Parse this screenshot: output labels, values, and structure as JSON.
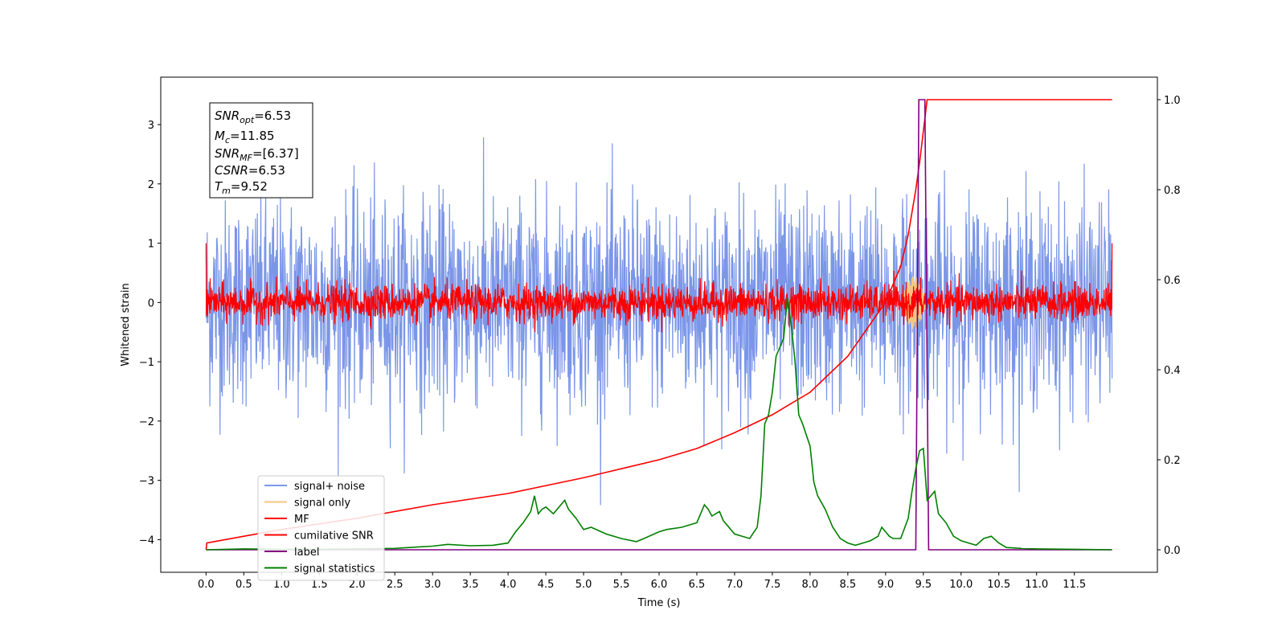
{
  "chart_data": {
    "type": "line",
    "xlabel": "Time (s)",
    "ylabel": "Whitened strain",
    "xlim": [
      -0.6,
      12.6
    ],
    "ylim": [
      -4.55,
      3.8
    ],
    "ylim_right": [
      -0.05,
      1.05
    ],
    "x_ticks": [
      "0.0",
      "0.5",
      "1.0",
      "1.5",
      "2.0",
      "2.5",
      "3.0",
      "3.5",
      "4.0",
      "4.5",
      "5.0",
      "5.5",
      "6.0",
      "6.5",
      "7.0",
      "7.5",
      "8.0",
      "8.5",
      "9.0",
      "9.5",
      "10.0",
      "10.5",
      "11.0",
      "11.5"
    ],
    "y_ticks": [
      "3",
      "2",
      "1",
      "0",
      "−1",
      "−2",
      "−3",
      "−4"
    ],
    "y2_ticks": [
      "1.0",
      "0.8",
      "0.6",
      "0.4",
      "0.2",
      "0.0"
    ],
    "grid": false,
    "legend_position": "lower-left",
    "info_box": {
      "snr_opt": {
        "main": "SNR",
        "sub": "opt",
        "value": "=6.53"
      },
      "mc": {
        "main": "M",
        "sub": "c",
        "value": "=11.85"
      },
      "snr_mf": {
        "main": "SNR",
        "sub": "MF",
        "value": "=[6.37]"
      },
      "csnr": {
        "main": "CSNR",
        "value": "=6.53"
      },
      "tm": {
        "main": "T",
        "sub": "m",
        "value": "=9.52"
      }
    },
    "series": [
      {
        "name": "signal+ noise",
        "color": "#7b96e8",
        "axis": "left",
        "description_values": {
          "x_range": [
            0,
            12
          ],
          "mean": 0.0,
          "std": 0.85
        }
      },
      {
        "name": "signal only",
        "color": "#f5c77e",
        "axis": "left",
        "x": [
          9.2,
          9.3,
          9.4,
          9.45,
          9.5,
          9.52,
          9.55
        ],
        "y": [
          0.0,
          0.1,
          0.25,
          0.35,
          0.45,
          0.3,
          0.0
        ]
      },
      {
        "name": "MF",
        "color": "#ff0000",
        "axis": "left",
        "description_values": {
          "x_range": [
            0,
            12
          ],
          "mean": 0.0,
          "std": 0.15,
          "edge_values": [
            1.0,
            1.0
          ]
        }
      },
      {
        "name": "cumilative SNR",
        "color": "#ff0000",
        "axis": "right",
        "x": [
          0.0,
          0.01,
          0.5,
          1.0,
          2.0,
          3.0,
          4.0,
          5.0,
          5.5,
          6.0,
          6.5,
          7.0,
          7.5,
          8.0,
          8.5,
          9.0,
          9.2,
          9.3,
          9.4,
          9.45,
          9.5,
          9.55,
          9.6,
          10.0,
          11.0,
          12.0
        ],
        "y": [
          0.0,
          0.015,
          0.03,
          0.045,
          0.07,
          0.1,
          0.125,
          0.16,
          0.18,
          0.2,
          0.225,
          0.26,
          0.3,
          0.35,
          0.43,
          0.55,
          0.63,
          0.7,
          0.8,
          0.86,
          0.93,
          1.0,
          1.0,
          1.0,
          1.0,
          1.0
        ]
      },
      {
        "name": "label",
        "color": "#800080",
        "axis": "right",
        "x": [
          0.0,
          9.4,
          9.44,
          9.52,
          9.57,
          12.0
        ],
        "y": [
          0.0,
          0.0,
          1.0,
          1.0,
          0.0,
          0.0
        ]
      },
      {
        "name": "signal statistics",
        "color": "#008000",
        "axis": "right",
        "x": [
          0.0,
          0.5,
          1.0,
          1.5,
          2.0,
          2.5,
          2.8,
          3.0,
          3.2,
          3.5,
          3.8,
          4.0,
          4.1,
          4.2,
          4.3,
          4.35,
          4.4,
          4.45,
          4.5,
          4.6,
          4.7,
          4.75,
          4.8,
          4.9,
          5.0,
          5.1,
          5.3,
          5.5,
          5.7,
          5.8,
          6.0,
          6.1,
          6.3,
          6.5,
          6.6,
          6.65,
          6.7,
          6.8,
          6.85,
          6.9,
          7.0,
          7.2,
          7.3,
          7.35,
          7.4,
          7.45,
          7.5,
          7.55,
          7.6,
          7.65,
          7.7,
          7.75,
          7.8,
          7.85,
          7.9,
          8.0,
          8.05,
          8.1,
          8.2,
          8.3,
          8.4,
          8.5,
          8.6,
          8.7,
          8.8,
          8.9,
          8.95,
          9.0,
          9.05,
          9.1,
          9.2,
          9.3,
          9.35,
          9.4,
          9.45,
          9.5,
          9.52,
          9.55,
          9.6,
          9.65,
          9.7,
          9.8,
          9.9,
          10.0,
          10.1,
          10.2,
          10.3,
          10.4,
          10.5,
          10.6,
          10.8,
          11.0,
          11.5,
          12.0
        ],
        "y": [
          0.0,
          0.002,
          0.001,
          0.001,
          0.002,
          0.003,
          0.006,
          0.008,
          0.012,
          0.009,
          0.01,
          0.015,
          0.04,
          0.06,
          0.085,
          0.12,
          0.08,
          0.09,
          0.095,
          0.08,
          0.1,
          0.11,
          0.09,
          0.07,
          0.045,
          0.05,
          0.035,
          0.025,
          0.018,
          0.025,
          0.04,
          0.045,
          0.05,
          0.06,
          0.1,
          0.09,
          0.075,
          0.085,
          0.065,
          0.055,
          0.035,
          0.025,
          0.05,
          0.12,
          0.28,
          0.3,
          0.35,
          0.43,
          0.45,
          0.47,
          0.56,
          0.5,
          0.42,
          0.3,
          0.28,
          0.23,
          0.15,
          0.12,
          0.09,
          0.05,
          0.025,
          0.015,
          0.01,
          0.015,
          0.02,
          0.03,
          0.05,
          0.04,
          0.03,
          0.025,
          0.025,
          0.07,
          0.13,
          0.18,
          0.22,
          0.225,
          0.18,
          0.11,
          0.12,
          0.13,
          0.08,
          0.06,
          0.03,
          0.02,
          0.015,
          0.01,
          0.025,
          0.03,
          0.015,
          0.005,
          0.003,
          0.002,
          0.001,
          0.0
        ]
      }
    ]
  }
}
